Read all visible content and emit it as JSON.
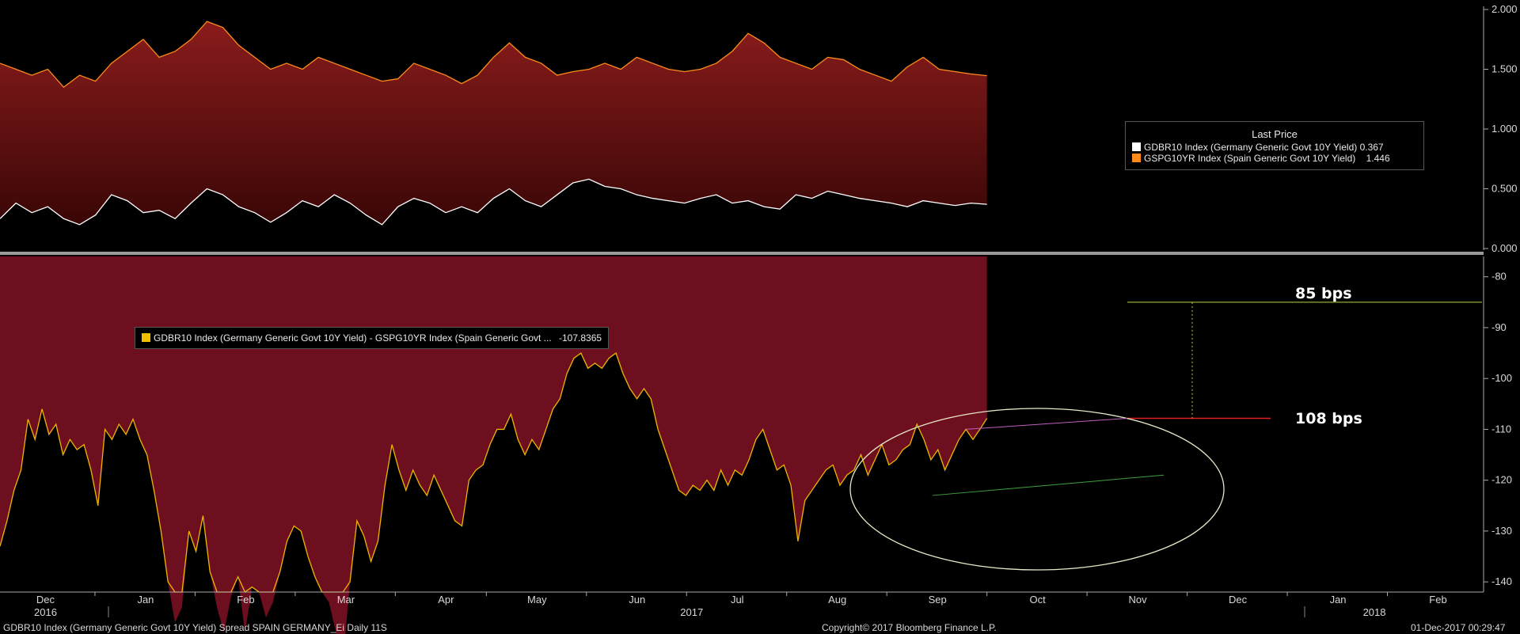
{
  "chart_data": [
    {
      "type": "area",
      "title": "",
      "y_axis_side": "right",
      "ylim": [
        0,
        2
      ],
      "y_ticks": [
        "0.000",
        "0.500",
        "1.000",
        "1.500",
        "2.000"
      ],
      "series": [
        {
          "name": "GDBR10 Index (Germany Generic Govt 10Y Yield)",
          "color": "#ffffff",
          "last": "0.367",
          "values": [
            0.25,
            0.38,
            0.3,
            0.35,
            0.25,
            0.2,
            0.28,
            0.45,
            0.4,
            0.3,
            0.32,
            0.25,
            0.38,
            0.5,
            0.45,
            0.35,
            0.3,
            0.22,
            0.3,
            0.4,
            0.35,
            0.45,
            0.38,
            0.28,
            0.2,
            0.35,
            0.42,
            0.38,
            0.3,
            0.35,
            0.3,
            0.42,
            0.5,
            0.4,
            0.35,
            0.45,
            0.55,
            0.58,
            0.52,
            0.5,
            0.45,
            0.42,
            0.4,
            0.38,
            0.42,
            0.45,
            0.38,
            0.4,
            0.35,
            0.33,
            0.45,
            0.42,
            0.48,
            0.45,
            0.42,
            0.4,
            0.38,
            0.35,
            0.4,
            0.38,
            0.36,
            0.38,
            0.37
          ]
        },
        {
          "name": "GSPG10YR Index (Spain Generic Govt 10Y Yield)",
          "color": "#ff8c1a",
          "last": "1.446",
          "values": [
            1.55,
            1.5,
            1.45,
            1.5,
            1.35,
            1.45,
            1.4,
            1.55,
            1.65,
            1.75,
            1.6,
            1.65,
            1.75,
            1.9,
            1.85,
            1.7,
            1.6,
            1.5,
            1.55,
            1.5,
            1.6,
            1.55,
            1.5,
            1.45,
            1.4,
            1.42,
            1.55,
            1.5,
            1.45,
            1.38,
            1.45,
            1.6,
            1.72,
            1.6,
            1.55,
            1.45,
            1.48,
            1.5,
            1.55,
            1.5,
            1.6,
            1.55,
            1.5,
            1.48,
            1.5,
            1.55,
            1.65,
            1.8,
            1.72,
            1.6,
            1.55,
            1.5,
            1.6,
            1.58,
            1.5,
            1.45,
            1.4,
            1.52,
            1.6,
            1.5,
            1.48,
            1.46,
            1.446
          ]
        }
      ],
      "legend": {
        "title": "Last Price",
        "position": "right"
      }
    },
    {
      "type": "line",
      "title": "",
      "y_axis_side": "right",
      "ylim": [
        -142,
        -76
      ],
      "y_ticks": [
        "-80",
        "-90",
        "-100",
        "-110",
        "-120",
        "-130",
        "-140"
      ],
      "x_labels": [
        {
          "label": "Dec",
          "idx": 5
        },
        {
          "label": "Jan",
          "idx": 16
        },
        {
          "label": "Feb",
          "idx": 27
        },
        {
          "label": "Mar",
          "idx": 38
        },
        {
          "label": "Apr",
          "idx": 49
        },
        {
          "label": "May",
          "idx": 59
        },
        {
          "label": "Jun",
          "idx": 70
        },
        {
          "label": "Jul",
          "idx": 81
        },
        {
          "label": "Aug",
          "idx": 92
        },
        {
          "label": "Sep",
          "idx": 103
        },
        {
          "label": "Oct",
          "idx": 114
        },
        {
          "label": "Nov",
          "idx": 125
        },
        {
          "label": "Dec",
          "idx": 136
        },
        {
          "label": "Jan",
          "idx": 147
        },
        {
          "label": "Feb",
          "idx": 158
        }
      ],
      "year_labels": [
        {
          "label": "2016",
          "idx": 5
        },
        {
          "label": "2017",
          "idx": 76
        },
        {
          "label": "2018",
          "idx": 151
        }
      ],
      "x_count": 164,
      "series": [
        {
          "name": "GDBR10 Index (Germany Generic Govt 10Y Yield) - GSPG10YR Index (Spain Generic Govt ...",
          "color": "#f0b400",
          "last": "-107.8365",
          "values": [
            -133,
            -128,
            -122,
            -118,
            -108,
            -112,
            -106,
            -111,
            -109,
            -115,
            -112,
            -114,
            -113,
            -118,
            -125,
            -110,
            -112,
            -109,
            -111,
            -108,
            -112,
            -115,
            -122,
            -130,
            -140,
            -148,
            -145,
            -130,
            -134,
            -127,
            -138,
            -145,
            -150,
            -143,
            -139,
            -150,
            -141,
            -142,
            -147,
            -144,
            -138,
            -132,
            -129,
            -130,
            -135,
            -139,
            -142,
            -144,
            -150,
            -156,
            -140,
            -128,
            -131,
            -136,
            -132,
            -121,
            -113,
            -118,
            -122,
            -118,
            -121,
            -123,
            -119,
            -122,
            -125,
            -128,
            -129,
            -120,
            -118,
            -117,
            -113,
            -110,
            -110,
            -107,
            -112,
            -115,
            -112,
            -114,
            -110,
            -106,
            -104,
            -99,
            -96,
            -95,
            -98,
            -97,
            -98,
            -96,
            -95,
            -99,
            -102,
            -104,
            -102,
            -104,
            -110,
            -114,
            -118,
            -122,
            -123,
            -121,
            -122,
            -120,
            -122,
            -118,
            -121,
            -118,
            -119,
            -116,
            -112,
            -110,
            -114,
            -118,
            -117,
            -121,
            -132,
            -124,
            -122,
            -120,
            -118,
            -117,
            -121,
            -119,
            -118,
            -115,
            -119,
            -116,
            -113,
            -117,
            -116,
            -114,
            -113,
            -109,
            -112,
            -116,
            -114,
            -118,
            -115,
            -112,
            -110,
            -112,
            -110,
            -107.8365
          ],
          "x_offset": 0
        },
        {
          "name": "",
          "color": "#ffffff",
          "values": [],
          "x_offset": 0
        }
      ],
      "annotations": [
        {
          "label": "85 bps",
          "value": -85
        },
        {
          "label": "108 bps",
          "value": -107.8365
        }
      ]
    }
  ],
  "footer": {
    "left": "GDBR10 Index (Germany Generic Govt 10Y Yield) Spread SPAIN GERMANY_Ei  Daily 11S",
    "center": "Copyright© 2017 Bloomberg Finance L.P.",
    "right": "01-Dec-2017 00:29:47"
  },
  "colors": {
    "background": "#000000",
    "top_fill": "#7a1818",
    "bottom_fill": "#6e0f20",
    "gdbr_line": "#ffffff",
    "gspg_line": "#ff8c1a",
    "spread_line": "#f0b400",
    "level_85": "#a0c040",
    "level_108": "#e02020",
    "ellipse": "#e8e8c8"
  }
}
